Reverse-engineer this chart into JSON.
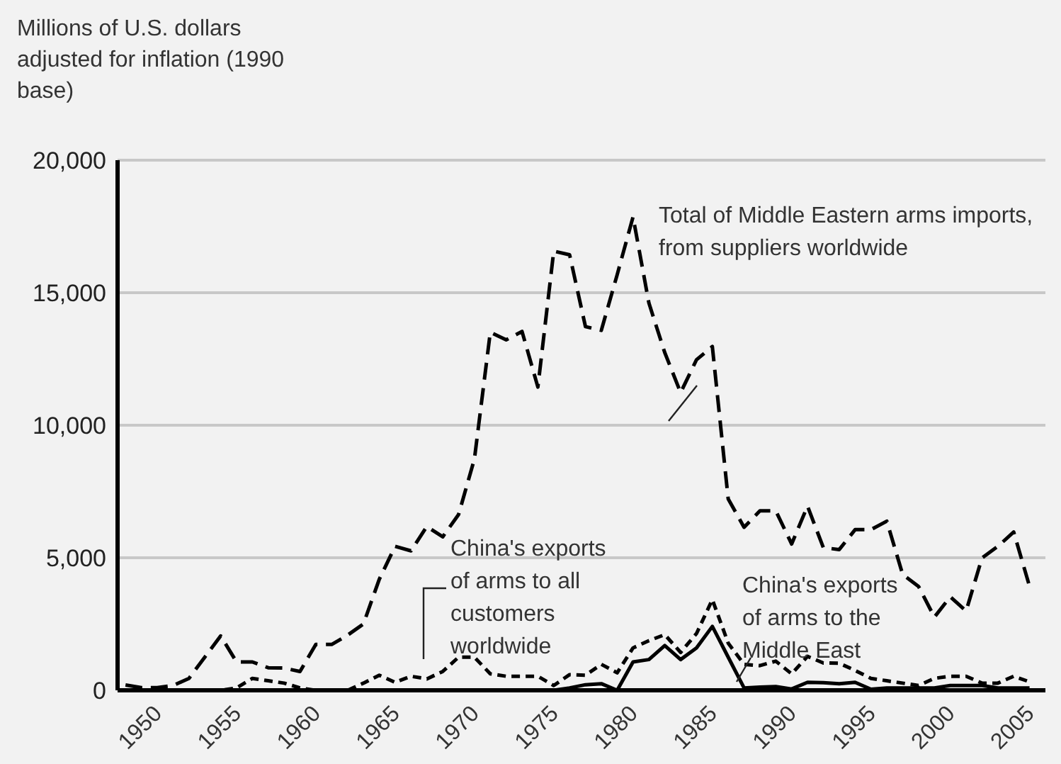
{
  "chart_data": {
    "type": "line",
    "ylabel": "Millions of U.S. dollars adjusted for inflation (1990 base)",
    "x": [
      1949,
      1950,
      1951,
      1952,
      1953,
      1954,
      1955,
      1956,
      1957,
      1958,
      1959,
      1960,
      1961,
      1962,
      1963,
      1964,
      1965,
      1966,
      1967,
      1968,
      1969,
      1970,
      1971,
      1972,
      1973,
      1974,
      1975,
      1976,
      1977,
      1978,
      1979,
      1980,
      1981,
      1982,
      1983,
      1984,
      1985,
      1986,
      1987,
      1988,
      1989,
      1990,
      1991,
      1992,
      1993,
      1994,
      1995,
      1996,
      1997,
      1998,
      1999,
      2000,
      2001,
      2002,
      2003,
      2004,
      2005,
      2006
    ],
    "series": [
      {
        "color": "#000000",
        "line_style": "dashed",
        "values": [
          200,
          100,
          100,
          180,
          450,
          1250,
          2050,
          1070,
          1070,
          850,
          840,
          710,
          1730,
          1730,
          2080,
          2500,
          4190,
          5430,
          5260,
          6180,
          5790,
          6630,
          8730,
          13510,
          13220,
          13540,
          11440,
          16570,
          16430,
          13720,
          13580,
          15680,
          17860,
          14610,
          12740,
          11230,
          12470,
          12970,
          7220,
          6150,
          6770,
          6770,
          5520,
          6950,
          5380,
          5310,
          6060,
          6060,
          6380,
          4370,
          3920,
          2760,
          3530,
          2990,
          4990,
          5430,
          5970,
          3920
        ]
      },
      {
        "color": "#000000",
        "line_style": "dashed",
        "values": [
          0,
          0,
          0,
          0,
          0,
          0,
          0,
          90,
          450,
          360,
          270,
          90,
          0,
          0,
          0,
          270,
          570,
          300,
          530,
          430,
          710,
          1250,
          1250,
          620,
          530,
          530,
          530,
          180,
          590,
          570,
          980,
          660,
          1600,
          1870,
          2100,
          1430,
          2140,
          3420,
          1780,
          980,
          930,
          1100,
          620,
          1280,
          1030,
          1020,
          750,
          450,
          360,
          270,
          180,
          450,
          530,
          530,
          270,
          270,
          530,
          320
        ]
      },
      {
        "color": "#000000",
        "line_style": "solid",
        "values": [
          0,
          0,
          0,
          0,
          0,
          0,
          0,
          0,
          0,
          0,
          0,
          0,
          0,
          0,
          0,
          0,
          0,
          0,
          0,
          0,
          0,
          0,
          0,
          0,
          0,
          0,
          0,
          0,
          90,
          210,
          250,
          0,
          1070,
          1160,
          1690,
          1160,
          1600,
          2410,
          1250,
          90,
          120,
          140,
          50,
          300,
          290,
          250,
          300,
          40,
          90,
          90,
          90,
          90,
          180,
          180,
          180,
          90,
          90,
          90
        ]
      }
    ],
    "xlim": [
      1948.5,
      2007
    ],
    "xticks": [
      1950,
      1955,
      1960,
      1965,
      1970,
      1975,
      1980,
      1985,
      1990,
      1995,
      2000,
      2005
    ],
    "ylim": [
      0,
      20000
    ],
    "yticks": [
      0,
      {
        "value": 5000,
        "label": "5,000"
      },
      {
        "value": 10000,
        "label": "10,000"
      },
      {
        "value": 15000,
        "label": "15,000"
      },
      {
        "value": 20000,
        "label": "20,000"
      }
    ],
    "grid": "y",
    "marker": "none",
    "annotations": [
      "Total of Middle Eastern arms imports, from suppliers worldwide",
      "China's exports of arms to all customers worldwide",
      "China's exports of arms to the Middle East"
    ]
  }
}
